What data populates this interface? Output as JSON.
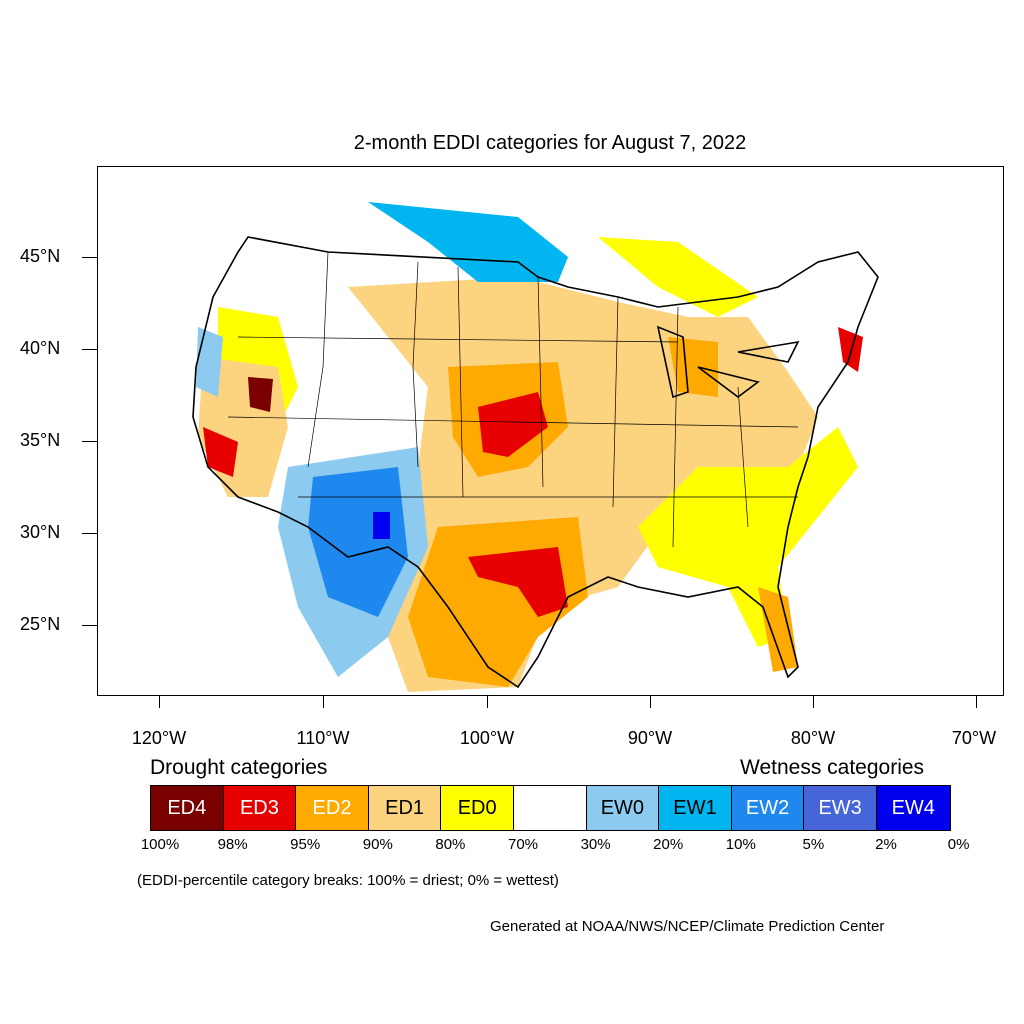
{
  "title": "2-month EDDI categories for August 7, 2022",
  "lat_labels": [
    "45°N",
    "40°N",
    "35°N",
    "30°N",
    "25°N"
  ],
  "lon_labels": [
    "120°W",
    "110°W",
    "100°W",
    "90°W",
    "80°W",
    "70°W"
  ],
  "legend": {
    "drought_heading": "Drought categories",
    "wetness_heading": "Wetness categories",
    "categories": [
      {
        "label": "ED4",
        "color": "#7a0000",
        "text_color": "#ffffff"
      },
      {
        "label": "ED3",
        "color": "#e60000",
        "text_color": "#ffffff"
      },
      {
        "label": "ED2",
        "color": "#ffaa00",
        "text_color": "#ffffff"
      },
      {
        "label": "ED1",
        "color": "#fcd37f",
        "text_color": "#000000"
      },
      {
        "label": "ED0",
        "color": "#ffff00",
        "text_color": "#000000"
      },
      {
        "label": "",
        "color": "#ffffff",
        "text_color": "#000000"
      },
      {
        "label": "EW0",
        "color": "#8ccbef",
        "text_color": "#000000"
      },
      {
        "label": "EW1",
        "color": "#00b5f0",
        "text_color": "#000000"
      },
      {
        "label": "EW2",
        "color": "#1e88ef",
        "text_color": "#ffffff"
      },
      {
        "label": "EW3",
        "color": "#4565d9",
        "text_color": "#ffffff"
      },
      {
        "label": "EW4",
        "color": "#0000ee",
        "text_color": "#ffffff"
      }
    ],
    "breaks": [
      "100%",
      "98%",
      "95%",
      "90%",
      "80%",
      "70%",
      "30%",
      "20%",
      "10%",
      "5%",
      "2%",
      "0%"
    ]
  },
  "note": "(EDDI-percentile category breaks: 100% = driest; 0% = wettest)",
  "credit": "Generated at NOAA/NWS/NCEP/Climate Prediction Center"
}
